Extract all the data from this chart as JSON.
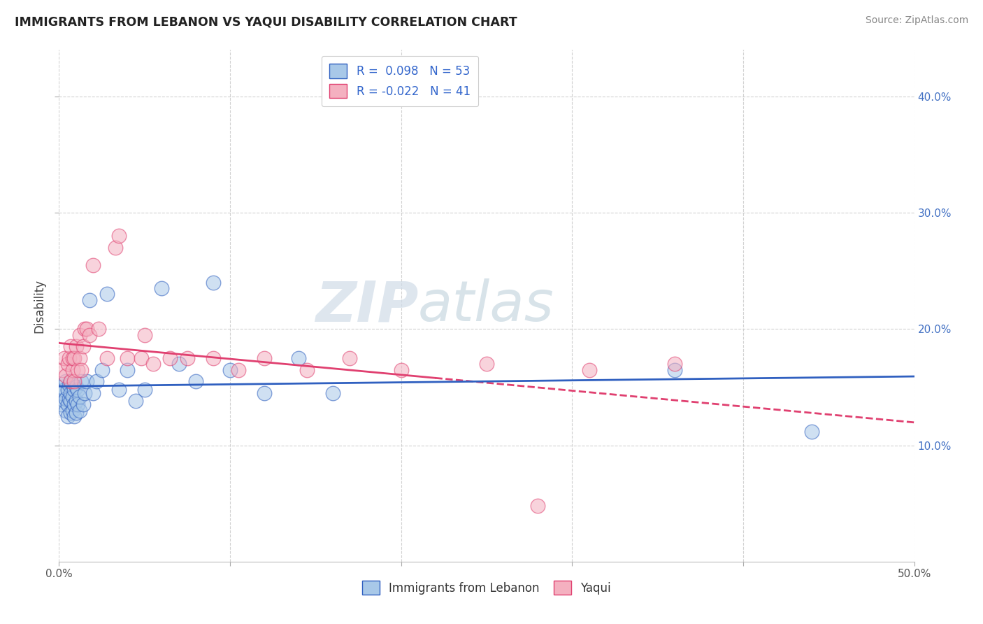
{
  "title": "IMMIGRANTS FROM LEBANON VS YAQUI DISABILITY CORRELATION CHART",
  "source": "Source: ZipAtlas.com",
  "ylabel": "Disability",
  "xlim": [
    0.0,
    0.5
  ],
  "ylim": [
    0.0,
    0.44
  ],
  "xtick_positions": [
    0.0,
    0.5
  ],
  "xtick_labels": [
    "0.0%",
    "50.0%"
  ],
  "yticks": [
    0.1,
    0.2,
    0.3,
    0.4
  ],
  "ytick_labels": [
    "10.0%",
    "20.0%",
    "30.0%",
    "40.0%"
  ],
  "legend_r1": "R =  0.098",
  "legend_n1": "N = 53",
  "legend_r2": "R = -0.022",
  "legend_n2": "N = 41",
  "color_blue": "#a8c8e8",
  "color_pink": "#f4b0c0",
  "line_blue": "#3060c0",
  "line_pink": "#e04070",
  "watermark_zip": "ZIP",
  "watermark_atlas": "atlas",
  "legend_label1": "Immigrants from Lebanon",
  "legend_label2": "Yaqui",
  "blue_x": [
    0.001,
    0.002,
    0.002,
    0.003,
    0.003,
    0.004,
    0.004,
    0.004,
    0.005,
    0.005,
    0.005,
    0.006,
    0.006,
    0.007,
    0.007,
    0.007,
    0.007,
    0.008,
    0.008,
    0.008,
    0.009,
    0.009,
    0.009,
    0.01,
    0.01,
    0.01,
    0.011,
    0.011,
    0.012,
    0.012,
    0.013,
    0.014,
    0.015,
    0.016,
    0.018,
    0.02,
    0.022,
    0.025,
    0.028,
    0.035,
    0.04,
    0.045,
    0.05,
    0.06,
    0.07,
    0.08,
    0.09,
    0.1,
    0.12,
    0.14,
    0.16,
    0.36,
    0.44
  ],
  "blue_y": [
    0.135,
    0.145,
    0.15,
    0.138,
    0.148,
    0.13,
    0.14,
    0.155,
    0.125,
    0.135,
    0.148,
    0.14,
    0.152,
    0.128,
    0.138,
    0.145,
    0.155,
    0.13,
    0.142,
    0.152,
    0.125,
    0.135,
    0.148,
    0.128,
    0.138,
    0.15,
    0.135,
    0.148,
    0.13,
    0.142,
    0.155,
    0.135,
    0.145,
    0.155,
    0.225,
    0.145,
    0.155,
    0.165,
    0.23,
    0.148,
    0.165,
    0.138,
    0.148,
    0.235,
    0.17,
    0.155,
    0.24,
    0.165,
    0.145,
    0.175,
    0.145,
    0.165,
    0.112
  ],
  "pink_x": [
    0.002,
    0.003,
    0.004,
    0.005,
    0.006,
    0.007,
    0.007,
    0.008,
    0.008,
    0.009,
    0.009,
    0.01,
    0.011,
    0.012,
    0.012,
    0.013,
    0.014,
    0.015,
    0.016,
    0.018,
    0.02,
    0.023,
    0.028,
    0.033,
    0.04,
    0.048,
    0.055,
    0.065,
    0.075,
    0.09,
    0.105,
    0.12,
    0.145,
    0.17,
    0.2,
    0.25,
    0.31,
    0.36,
    0.05,
    0.035,
    0.28
  ],
  "pink_y": [
    0.165,
    0.175,
    0.16,
    0.17,
    0.175,
    0.155,
    0.185,
    0.165,
    0.175,
    0.155,
    0.175,
    0.185,
    0.165,
    0.175,
    0.195,
    0.165,
    0.185,
    0.2,
    0.2,
    0.195,
    0.255,
    0.2,
    0.175,
    0.27,
    0.175,
    0.175,
    0.17,
    0.175,
    0.175,
    0.175,
    0.165,
    0.175,
    0.165,
    0.175,
    0.165,
    0.17,
    0.165,
    0.17,
    0.195,
    0.28,
    0.048
  ]
}
